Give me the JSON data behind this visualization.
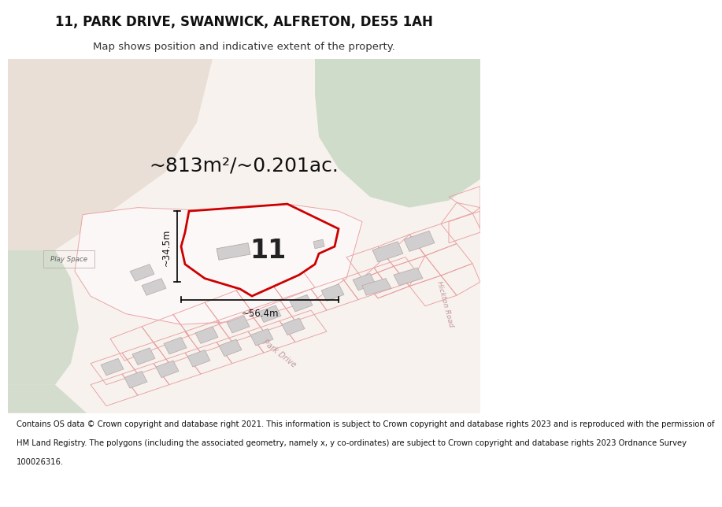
{
  "title": "11, PARK DRIVE, SWANWICK, ALFRETON, DE55 1AH",
  "subtitle": "Map shows position and indicative extent of the property.",
  "footer_lines": [
    "Contains OS data © Crown copyright and database right 2021. This information is subject to Crown copyright and database rights 2023 and is reproduced with the permission of",
    "HM Land Registry. The polygons (including the associated geometry, namely x, y co-ordinates) are subject to Crown copyright and database rights 2023 Ordnance Survey",
    "100026316."
  ],
  "area_text": "~813m²/~0.201ac.",
  "dim_width": "~56.4m",
  "dim_height": "~34.5m",
  "property_number": "11",
  "map_bg": "#f7f2ee",
  "beige_top_left": "#e8ddd4",
  "green_top_right": "#c9d9c4",
  "green_left_strip": "#c4d4c0",
  "green_bottom_left": "#c4d4c0",
  "cad_color": "#e8a0a0",
  "property_fill": "#fdf8f8",
  "property_outline": "#cc0000",
  "building_fill": "#d0cece",
  "building_edge": "#b8a8a8",
  "road_text_color": "#c09898",
  "title_fontsize": 12,
  "subtitle_fontsize": 9.5,
  "footer_fontsize": 7.2
}
